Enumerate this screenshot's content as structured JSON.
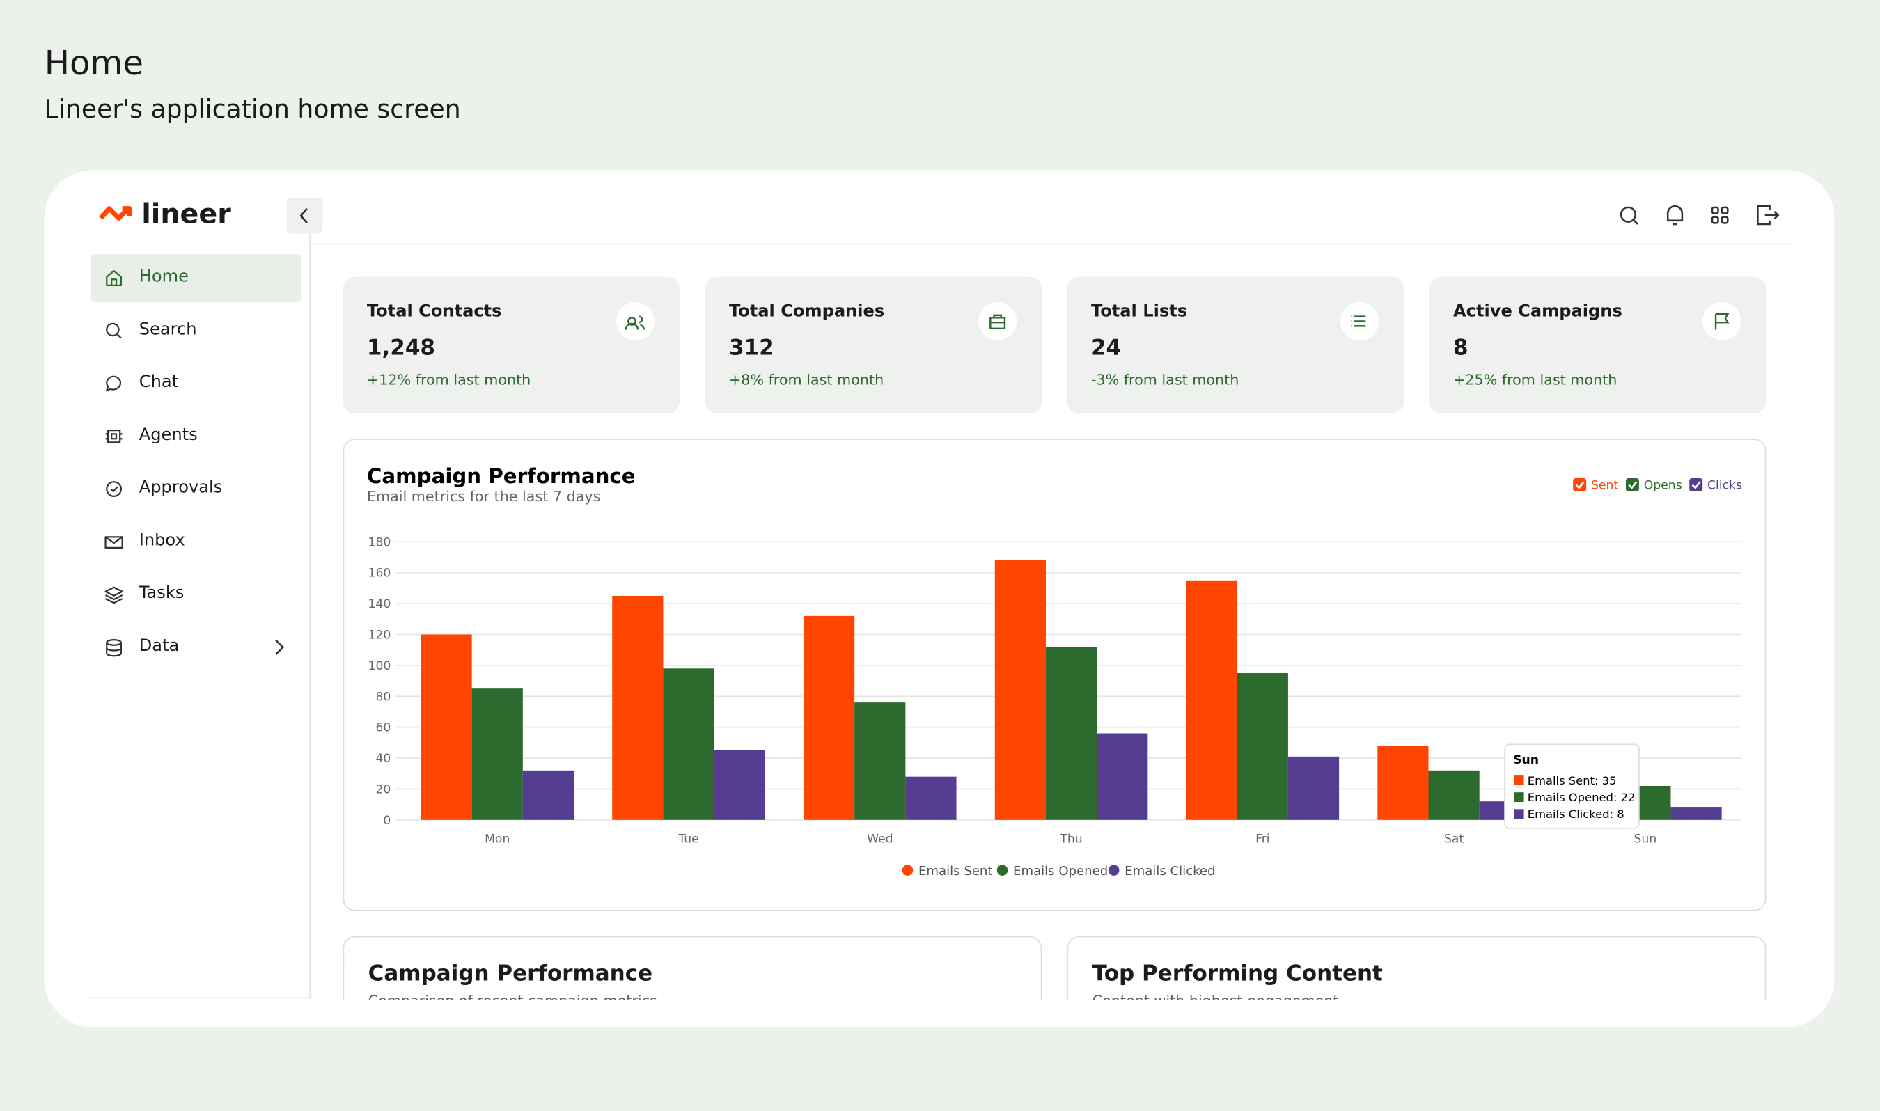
{
  "page": {
    "title": "Home",
    "subtitle": "Lineer's application home screen"
  },
  "app": {
    "logo": "lineer",
    "nav": [
      "Home",
      "Search",
      "Chat",
      "Agents",
      "Approvals",
      "Inbox",
      "Tasks",
      "Data"
    ],
    "stats": [
      {
        "title": "Total Contacts",
        "value": "1,248",
        "change": "+12% from last month"
      },
      {
        "title": "Total Companies",
        "value": "312",
        "change": "+8% from last month"
      },
      {
        "title": "Total Lists",
        "value": "24",
        "change": "-3% from last month"
      },
      {
        "title": "Active Campaigns",
        "value": "8",
        "change": "+25% from last month"
      }
    ],
    "bottom_cards": [
      {
        "title": "Campaign Performance",
        "subtitle": "Comparison of recent campaign metrics"
      },
      {
        "title": "Top Performing Content",
        "subtitle": "Content with highest engagement"
      }
    ]
  },
  "chart_data": {
    "type": "bar",
    "title": "Campaign Performance",
    "subtitle": "Email metrics for the last 7 days",
    "toggles": [
      "Sent",
      "Opens",
      "Clicks"
    ],
    "categories": [
      "Mon",
      "Tue",
      "Wed",
      "Thu",
      "Fri",
      "Sat",
      "Sun"
    ],
    "series": [
      {
        "name": "Emails Sent",
        "color": "#ff4500",
        "values": [
          120,
          145,
          132,
          168,
          155,
          48,
          35
        ]
      },
      {
        "name": "Emails Opened",
        "color": "#2c6a2e",
        "values": [
          85,
          98,
          76,
          112,
          95,
          32,
          22
        ]
      },
      {
        "name": "Emails Clicked",
        "color": "#553e91",
        "values": [
          32,
          45,
          28,
          56,
          41,
          12,
          8
        ]
      }
    ],
    "ylim": [
      0,
      180
    ],
    "yticks": [
      0,
      20,
      40,
      60,
      80,
      100,
      120,
      140,
      160,
      180
    ],
    "grid": true,
    "tooltip": {
      "title": "Sun",
      "items": [
        "Emails Sent: 35",
        "Emails Opened: 22",
        "Emails Clicked: 8"
      ]
    }
  }
}
